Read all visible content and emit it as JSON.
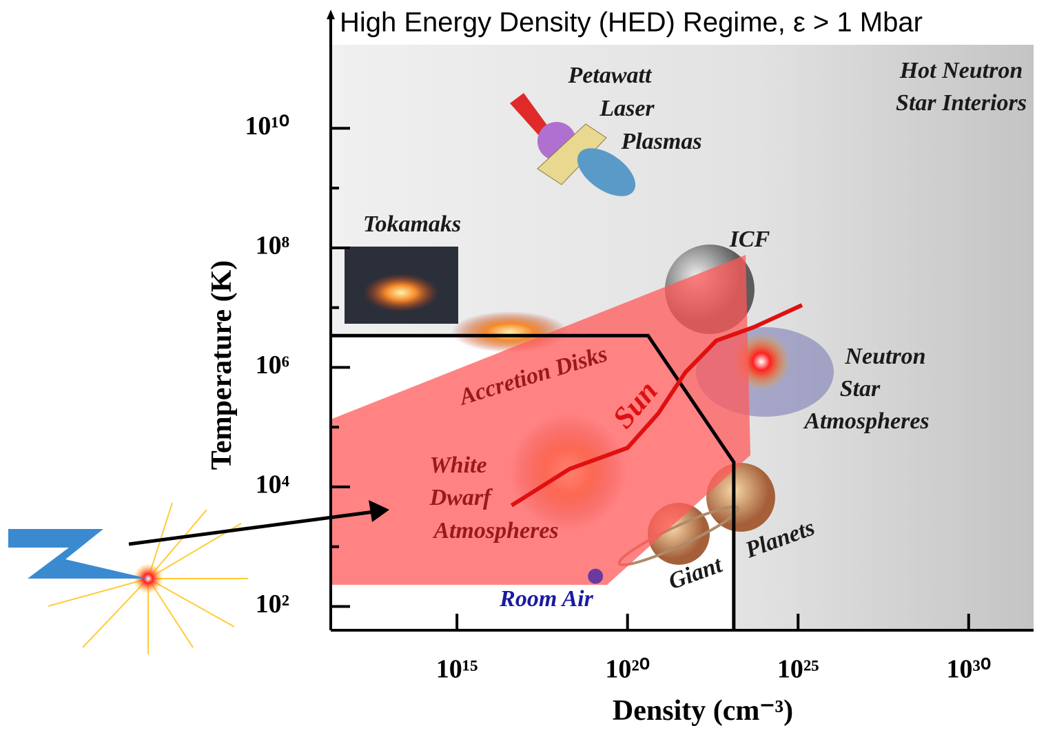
{
  "chart_data": {
    "type": "regime-diagram",
    "title": "High Energy Density (HED) Regime, ε > 1 Mbar",
    "x_label": "Density (cm⁻³)",
    "y_label": "Temperature (K)",
    "xscale": "log",
    "yscale": "log",
    "xlim": [
      200000000000.0,
      8e+31
    ],
    "ylim": [
      40,
      250000000000.0
    ],
    "xticks": [
      {
        "value": 1000000000000000.0,
        "label": "10¹⁵"
      },
      {
        "value": 1e+20,
        "label": "10²⁰"
      },
      {
        "value": 1e+25,
        "label": "10²⁵"
      },
      {
        "value": 1e+30,
        "label": "10³⁰"
      }
    ],
    "yticks": [
      {
        "value": 100.0,
        "label": "10²"
      },
      {
        "value": 10000.0,
        "label": "10⁴"
      },
      {
        "value": 1000000.0,
        "label": "10⁶"
      },
      {
        "value": 100000000.0,
        "label": "10⁸"
      },
      {
        "value": 10000000000.0,
        "label": "10¹⁰"
      }
    ],
    "yminor": [
      1000.0,
      100000.0,
      10000000.0,
      1000000000.0
    ],
    "hed_boundary": {
      "x": [
        200000000000.0,
        4e+20,
        1.3e+23,
        1.3e+23
      ],
      "y": [
        3400000.0,
        3400000.0,
        26000.0,
        40
      ]
    },
    "lab_region": {
      "color": "#ff5a5a",
      "x": [
        200000000000.0,
        2.9e+23,
        4e+23,
        2.5e+19,
        200000000000.0
      ],
      "y": [
        135000.0,
        76000000.0,
        34000.0,
        230,
        230
      ]
    },
    "sun": {
      "name": "Sun",
      "color": "#e01010",
      "x": [
        4e+16,
        2e+18,
        1e+20,
        8e+20,
        5e+21,
        4e+22,
        5e+23,
        1.3e+25
      ],
      "y": [
        4900.0,
        20000.0,
        45000.0,
        170000.0,
        830000.0,
        2800000.0,
        4700000.0,
        11000000.0
      ]
    },
    "room_air": {
      "name": "Room Air",
      "color": "#6a3aa0",
      "x": 1.15e+19,
      "y": 320
    },
    "labels": {
      "petawatt": [
        "Petawatt",
        "Laser",
        "Plasmas"
      ],
      "hot_neutron": [
        "Hot Neutron",
        "Star Interiors"
      ],
      "tokamaks": "Tokamaks",
      "icf": "ICF",
      "accretion": "Accretion Disks",
      "white_dwarf": [
        "White",
        "Dwarf",
        "Atmospheres"
      ],
      "neutron_star": [
        "Neutron",
        "Star",
        "Atmospheres"
      ],
      "giant": "Giant",
      "planets": "Planets"
    }
  }
}
